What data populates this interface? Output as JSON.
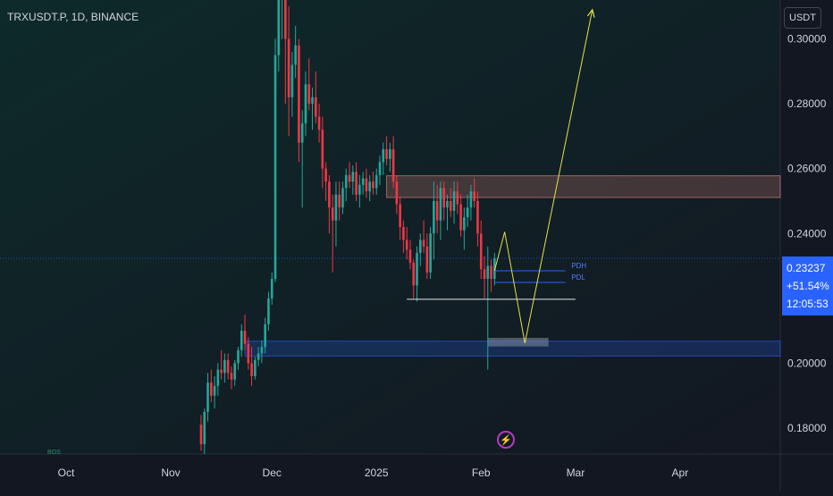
{
  "header": {
    "symbol": "TRXUSDT.P, 1D, BINANCE",
    "currency": "USDT"
  },
  "price_label": {
    "price": "0.23237",
    "change": "+51.54%",
    "countdown": "12:05:53"
  },
  "badge": {
    "label": "BOS"
  },
  "colors": {
    "background": "#131722",
    "up": "#26a69a",
    "down": "#f23645",
    "accent": "#2962ff",
    "projection": "#e5e04c",
    "resistance_zone": "#f28b82",
    "support_zone": "#2962ff"
  },
  "chart_data": {
    "type": "candlestick",
    "title": "TRXUSDT.P, 1D, BINANCE",
    "y_ticks": [
      "0.30000",
      "0.28000",
      "0.26000",
      "0.24000",
      "0.20000",
      "0.18000"
    ],
    "x_ticks": [
      "Oct",
      "Nov",
      "Dec",
      "2025",
      "Feb",
      "Mar",
      "Apr"
    ],
    "ylim": [
      0.172,
      0.312
    ],
    "current_price": 0.23237,
    "zones": [
      {
        "name": "resistance",
        "from": 0.2511,
        "to": 0.2578,
        "start": "2025-01-04"
      },
      {
        "name": "support",
        "from": 0.2022,
        "to": 0.2068,
        "start": "2024-11-23"
      }
    ],
    "levels": [
      {
        "label": "PDH",
        "value": 0.2285,
        "start": "2025-02-05",
        "end": "2025-02-26"
      },
      {
        "label": "PDL",
        "value": 0.2249,
        "start": "2025-02-05",
        "end": "2025-02-26"
      }
    ],
    "candles": [
      [
        "2024-11-10",
        0.181,
        0.184,
        0.173,
        0.175
      ],
      [
        "2024-11-11",
        0.175,
        0.186,
        0.172,
        0.185
      ],
      [
        "2024-11-12",
        0.185,
        0.197,
        0.182,
        0.194
      ],
      [
        "2024-11-13",
        0.194,
        0.198,
        0.188,
        0.19
      ],
      [
        "2024-11-14",
        0.19,
        0.196,
        0.186,
        0.193
      ],
      [
        "2024-11-15",
        0.193,
        0.2,
        0.19,
        0.198
      ],
      [
        "2024-11-16",
        0.198,
        0.204,
        0.195,
        0.197
      ],
      [
        "2024-11-17",
        0.197,
        0.203,
        0.194,
        0.201
      ],
      [
        "2024-11-18",
        0.201,
        0.203,
        0.195,
        0.197
      ],
      [
        "2024-11-19",
        0.197,
        0.199,
        0.192,
        0.195
      ],
      [
        "2024-11-20",
        0.195,
        0.201,
        0.193,
        0.2
      ],
      [
        "2024-11-21",
        0.2,
        0.205,
        0.198,
        0.204
      ],
      [
        "2024-11-22",
        0.204,
        0.212,
        0.202,
        0.21
      ],
      [
        "2024-11-23",
        0.21,
        0.215,
        0.204,
        0.206
      ],
      [
        "2024-11-24",
        0.206,
        0.208,
        0.198,
        0.2
      ],
      [
        "2024-11-25",
        0.2,
        0.205,
        0.193,
        0.196
      ],
      [
        "2024-11-26",
        0.196,
        0.202,
        0.195,
        0.201
      ],
      [
        "2024-11-27",
        0.201,
        0.205,
        0.199,
        0.203
      ],
      [
        "2024-11-28",
        0.203,
        0.207,
        0.2,
        0.205
      ],
      [
        "2024-11-29",
        0.205,
        0.214,
        0.203,
        0.212
      ],
      [
        "2024-11-30",
        0.212,
        0.222,
        0.21,
        0.22
      ],
      [
        "2024-12-01",
        0.22,
        0.228,
        0.218,
        0.226
      ],
      [
        "2024-12-02",
        0.226,
        0.3,
        0.225,
        0.295
      ],
      [
        "2024-12-03",
        0.295,
        0.335,
        0.29,
        0.33
      ],
      [
        "2024-12-04",
        0.33,
        0.44,
        0.3,
        0.34
      ],
      [
        "2024-12-05",
        0.34,
        0.36,
        0.28,
        0.3
      ],
      [
        "2024-12-06",
        0.3,
        0.31,
        0.27,
        0.282
      ],
      [
        "2024-12-07",
        0.282,
        0.296,
        0.276,
        0.292
      ],
      [
        "2024-12-08",
        0.292,
        0.304,
        0.288,
        0.298
      ],
      [
        "2024-12-09",
        0.298,
        0.3,
        0.262,
        0.268
      ],
      [
        "2024-12-10",
        0.268,
        0.278,
        0.248,
        0.274
      ],
      [
        "2024-12-11",
        0.274,
        0.29,
        0.27,
        0.286
      ],
      [
        "2024-12-12",
        0.286,
        0.294,
        0.278,
        0.28
      ],
      [
        "2024-12-13",
        0.28,
        0.285,
        0.272,
        0.282
      ],
      [
        "2024-12-14",
        0.282,
        0.29,
        0.274,
        0.276
      ],
      [
        "2024-12-15",
        0.276,
        0.28,
        0.268,
        0.272
      ],
      [
        "2024-12-16",
        0.272,
        0.276,
        0.254,
        0.26
      ],
      [
        "2024-12-17",
        0.26,
        0.262,
        0.25,
        0.256
      ],
      [
        "2024-12-18",
        0.256,
        0.258,
        0.24,
        0.248
      ],
      [
        "2024-12-19",
        0.248,
        0.252,
        0.228,
        0.244
      ],
      [
        "2024-12-20",
        0.244,
        0.256,
        0.236,
        0.252
      ],
      [
        "2024-12-21",
        0.252,
        0.256,
        0.244,
        0.248
      ],
      [
        "2024-12-22",
        0.248,
        0.256,
        0.246,
        0.254
      ],
      [
        "2024-12-23",
        0.254,
        0.26,
        0.25,
        0.258
      ],
      [
        "2024-12-24",
        0.258,
        0.262,
        0.254,
        0.256
      ],
      [
        "2024-12-25",
        0.256,
        0.261,
        0.252,
        0.259
      ],
      [
        "2024-12-26",
        0.259,
        0.262,
        0.25,
        0.252
      ],
      [
        "2024-12-27",
        0.252,
        0.258,
        0.248,
        0.255
      ],
      [
        "2024-12-28",
        0.255,
        0.259,
        0.252,
        0.257
      ],
      [
        "2024-12-29",
        0.257,
        0.26,
        0.251,
        0.253
      ],
      [
        "2024-12-30",
        0.253,
        0.258,
        0.25,
        0.256
      ],
      [
        "2024-12-31",
        0.256,
        0.259,
        0.252,
        0.254
      ],
      [
        "2025-01-01",
        0.254,
        0.26,
        0.252,
        0.258
      ],
      [
        "2025-01-02",
        0.258,
        0.264,
        0.255,
        0.262
      ],
      [
        "2025-01-03",
        0.262,
        0.268,
        0.258,
        0.266
      ],
      [
        "2025-01-04",
        0.266,
        0.27,
        0.261,
        0.263
      ],
      [
        "2025-01-05",
        0.263,
        0.268,
        0.259,
        0.266
      ],
      [
        "2025-01-06",
        0.266,
        0.27,
        0.254,
        0.256
      ],
      [
        "2025-01-07",
        0.256,
        0.258,
        0.246,
        0.249
      ],
      [
        "2025-01-08",
        0.249,
        0.251,
        0.238,
        0.242
      ],
      [
        "2025-01-09",
        0.242,
        0.244,
        0.234,
        0.238
      ],
      [
        "2025-01-10",
        0.238,
        0.242,
        0.232,
        0.235
      ],
      [
        "2025-01-11",
        0.235,
        0.238,
        0.229,
        0.231
      ],
      [
        "2025-01-12",
        0.231,
        0.232,
        0.22,
        0.224
      ],
      [
        "2025-01-13",
        0.224,
        0.236,
        0.219,
        0.234
      ],
      [
        "2025-01-14",
        0.234,
        0.24,
        0.23,
        0.238
      ],
      [
        "2025-01-15",
        0.238,
        0.244,
        0.234,
        0.236
      ],
      [
        "2025-01-16",
        0.236,
        0.24,
        0.226,
        0.228
      ],
      [
        "2025-01-17",
        0.228,
        0.242,
        0.226,
        0.24
      ],
      [
        "2025-01-18",
        0.24,
        0.256,
        0.232,
        0.25
      ],
      [
        "2025-01-19",
        0.25,
        0.255,
        0.24,
        0.244
      ],
      [
        "2025-01-20",
        0.244,
        0.256,
        0.238,
        0.254
      ],
      [
        "2025-01-21",
        0.254,
        0.256,
        0.244,
        0.248
      ],
      [
        "2025-01-22",
        0.248,
        0.252,
        0.241,
        0.25
      ],
      [
        "2025-01-23",
        0.25,
        0.254,
        0.245,
        0.247
      ],
      [
        "2025-01-24",
        0.247,
        0.256,
        0.243,
        0.253
      ],
      [
        "2025-01-25",
        0.253,
        0.256,
        0.246,
        0.249
      ],
      [
        "2025-01-26",
        0.249,
        0.252,
        0.239,
        0.241
      ],
      [
        "2025-01-27",
        0.241,
        0.248,
        0.235,
        0.245
      ],
      [
        "2025-01-28",
        0.245,
        0.252,
        0.242,
        0.248
      ],
      [
        "2025-01-29",
        0.248,
        0.255,
        0.244,
        0.253
      ],
      [
        "2025-01-30",
        0.253,
        0.257,
        0.248,
        0.25
      ],
      [
        "2025-01-31",
        0.25,
        0.253,
        0.236,
        0.24
      ],
      [
        "2025-02-01",
        0.24,
        0.244,
        0.226,
        0.229
      ],
      [
        "2025-02-02",
        0.229,
        0.233,
        0.22,
        0.226
      ],
      [
        "2025-02-03",
        0.226,
        0.236,
        0.198,
        0.23
      ],
      [
        "2025-02-04",
        0.23,
        0.232,
        0.222,
        0.226
      ],
      [
        "2025-02-05",
        0.226,
        0.234,
        0.224,
        0.2324
      ]
    ],
    "projection_path": [
      [
        "2025-02-05",
        0.2285
      ],
      [
        "2025-02-08",
        0.2405
      ],
      [
        "2025-02-14",
        0.2062
      ],
      [
        "2025-03-06",
        0.309
      ]
    ],
    "marked_low": {
      "value": 0.2197,
      "start": "2025-01-10",
      "end": "2025-03-01"
    },
    "highlighted_box": {
      "from": 0.206,
      "to": 0.207,
      "start": "2025-02-03",
      "end": "2025-02-21"
    }
  }
}
